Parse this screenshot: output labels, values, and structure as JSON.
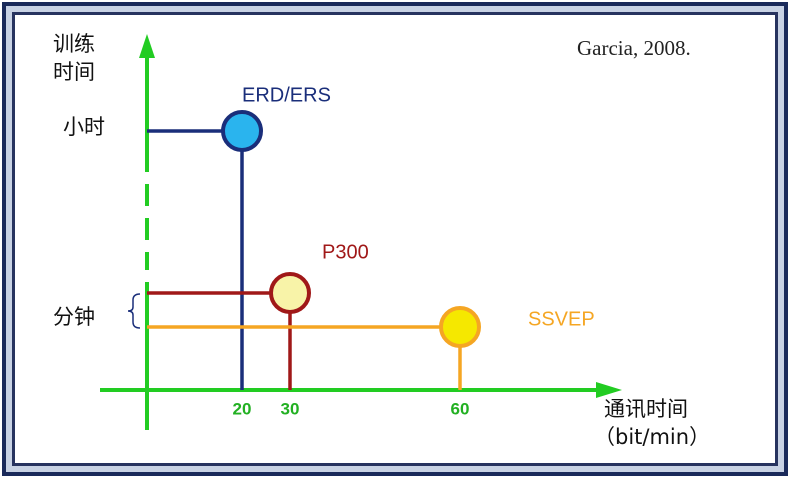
{
  "header": {
    "citation": "Garcia, 2008."
  },
  "axes": {
    "y_title_lines": [
      "训练",
      "时间"
    ],
    "y_labels": [
      "小时",
      "分钟"
    ],
    "x_title": "通讯时间",
    "x_unit": "（bit/min）",
    "x_ticks": [
      "20",
      "30",
      "60"
    ]
  },
  "nodes": [
    {
      "label": "ERD/ERS"
    },
    {
      "label": "P300"
    },
    {
      "label": "SSVEP"
    }
  ]
}
